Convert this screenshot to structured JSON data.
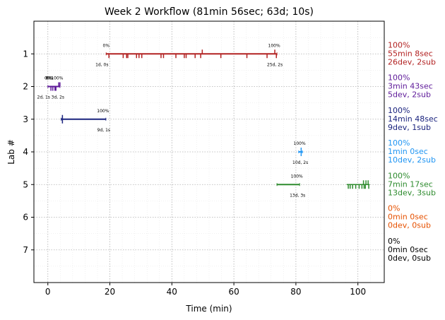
{
  "chart_data": {
    "type": "gantt",
    "title": "Week 2 Workflow (81min 56sec; 63d; 10s)",
    "xlabel": "Time (min)",
    "ylabel": "Lab #",
    "xlim": [
      -4.5,
      108.5
    ],
    "ylim": [
      8,
      0
    ],
    "x_ticks": [
      0,
      20,
      40,
      60,
      80,
      100
    ],
    "y_ticks": [
      1,
      2,
      3,
      4,
      5,
      6,
      7
    ],
    "grid": true,
    "lanes": [
      {
        "lab": 1,
        "color": "#b22222",
        "start": 18.8,
        "end": 73.9,
        "start_label": "0%",
        "end_label": "100%",
        "left_sub": "1d, 0s",
        "right_sub": "25d, 2s",
        "events_down": [
          19.7,
          24.3,
          25.4,
          25.8,
          28.6,
          29.4,
          30.3,
          36.5,
          37.3,
          41.3,
          44.0,
          44.6,
          47.5,
          49.3,
          55.8,
          64.2,
          70.7,
          73.7
        ],
        "events_up": [
          49.8,
          73.2
        ],
        "summary": [
          "100%",
          "55min 8sec",
          "26dev, 2sub"
        ]
      },
      {
        "lab": 2,
        "color": "#5e1a99",
        "start": 0.0,
        "end": 3.9,
        "start_label": "0%",
        "end_label": "100%",
        "left_sub": "2d, 1s",
        "right_sub": "3d, 2s",
        "overlap_labels": [
          "0%",
          "0%"
        ],
        "events_down": [
          1.0,
          1.6,
          2.3,
          2.6
        ],
        "events_up": [
          3.5,
          3.9
        ],
        "summary": [
          "100%",
          "3min 43sec",
          "5dev, 2sub"
        ]
      },
      {
        "lab": 3,
        "color": "#1a237e",
        "start": 4.3,
        "end": 18.7,
        "start_label": "",
        "end_label": "100%",
        "left_sub": "",
        "right_sub": "9d, 1s",
        "events_down": [
          4.7
        ],
        "events_up": [
          4.7
        ],
        "summary": [
          "100%",
          "14min 48sec",
          "9dev, 1sub"
        ]
      },
      {
        "lab": 4,
        "color": "#2196f3",
        "start": 80.9,
        "end": 82.1,
        "start_label": "",
        "end_label": "100%",
        "left_sub": "",
        "right_sub": "10d, 2s",
        "events_down": [
          81.7
        ],
        "events_up": [
          81.7
        ],
        "summary": [
          "100%",
          "1min 0sec",
          "10dev, 2sub"
        ]
      },
      {
        "lab": 5,
        "color": "#2e8b2e",
        "start": 73.9,
        "end": 81.2,
        "start_label": "",
        "end_label": "100%",
        "left_sub": "",
        "right_sub": "13d, 3s",
        "extra_segment": [
          96.4,
          103.8
        ],
        "events_down": [
          96.9,
          97.5,
          98.3,
          99.3,
          100.4,
          101.3,
          102.0,
          102.4,
          103.5
        ],
        "events_up": [
          101.8,
          102.6,
          103.3
        ],
        "summary": [
          "100%",
          "7min 17sec",
          "13dev, 3sub"
        ]
      },
      {
        "lab": 6,
        "color": "#e65100",
        "summary": [
          "0%",
          "0min 0sec",
          "0dev, 0sub"
        ]
      },
      {
        "lab": 7,
        "color": "#000000",
        "summary": [
          "0%",
          "0min 0sec",
          "0dev, 0sub"
        ]
      }
    ]
  }
}
